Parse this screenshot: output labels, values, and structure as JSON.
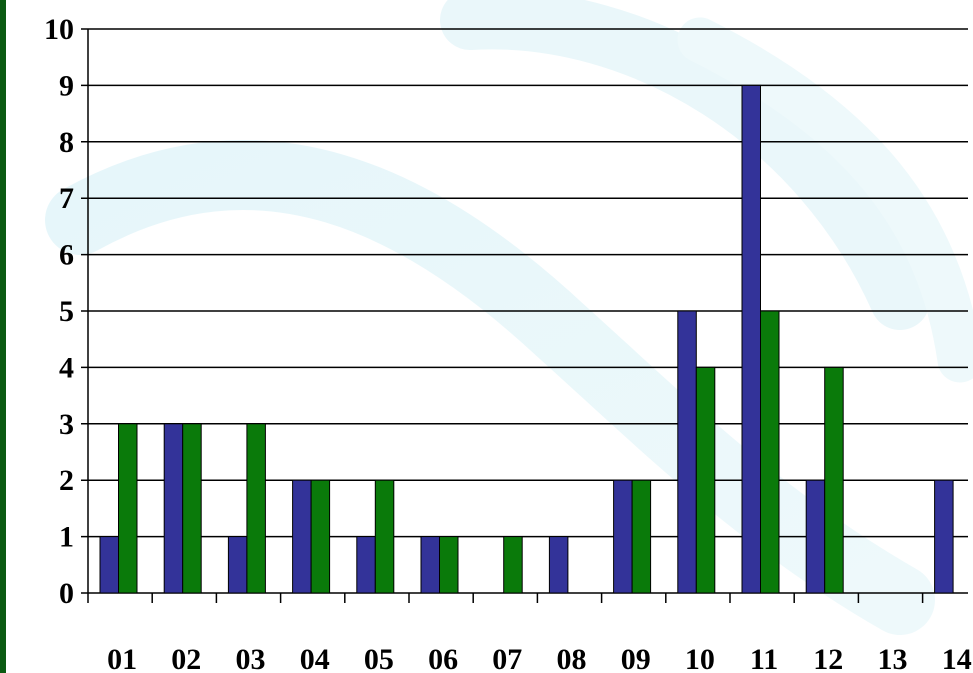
{
  "chart_data": {
    "type": "bar",
    "categories": [
      "01",
      "02",
      "03",
      "04",
      "05",
      "06",
      "07",
      "08",
      "09",
      "10",
      "11",
      "12",
      "13",
      "14"
    ],
    "series": [
      {
        "color": "#333399",
        "values": [
          1,
          3,
          1,
          2,
          1,
          1,
          0,
          1,
          2,
          5,
          9,
          2,
          0,
          2
        ]
      },
      {
        "color": "#0a7a0a",
        "values": [
          3,
          3,
          3,
          2,
          2,
          1,
          1,
          0,
          2,
          4,
          5,
          4,
          0,
          0
        ]
      }
    ],
    "y_ticks": [
      "0",
      "1",
      "2",
      "3",
      "4",
      "5",
      "6",
      "7",
      "8",
      "9",
      "10"
    ],
    "ylim": [
      0,
      10
    ],
    "grid": true,
    "legend": "none"
  }
}
